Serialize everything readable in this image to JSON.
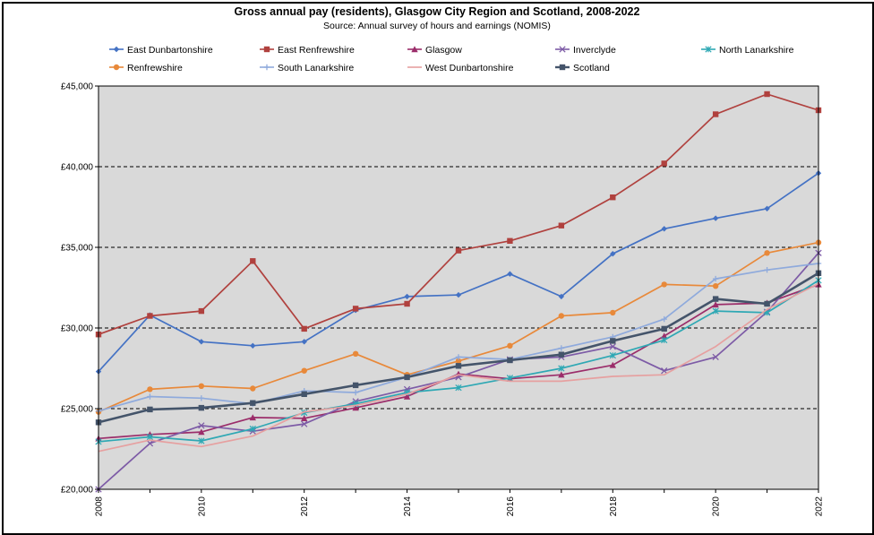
{
  "chart_data": {
    "type": "line",
    "title": "Gross annual pay (residents), Glasgow City Region and Scotland, 2008-2022",
    "subtitle": "Source: Annual survey of hours and earnings (NOMIS)",
    "xlabel": "",
    "ylabel": "",
    "x": [
      2008,
      2009,
      2010,
      2011,
      2012,
      2013,
      2014,
      2015,
      2016,
      2017,
      2018,
      2019,
      2020,
      2021,
      2022
    ],
    "xticks": [
      "2008",
      "2010",
      "2012",
      "2014",
      "2016",
      "2018",
      "2020",
      "2022"
    ],
    "xlim": [
      2008,
      2022
    ],
    "ylim": [
      20000,
      45000
    ],
    "yticks": [
      {
        "value": 20000,
        "label": "£20,000"
      },
      {
        "value": 25000,
        "label": "£25,000"
      },
      {
        "value": 30000,
        "label": "£30,000"
      },
      {
        "value": 35000,
        "label": "£35,000"
      },
      {
        "value": 40000,
        "label": "£40,000"
      },
      {
        "value": 45000,
        "label": "£45,000"
      }
    ],
    "grid": "horizontal dashed",
    "legend_position": "top",
    "plot_background": "#d9d9d9",
    "series": [
      {
        "name": "East Dunbartonshire",
        "color": "#4472c4",
        "marker": "diamond",
        "values": [
          27300,
          30800,
          29150,
          28900,
          29150,
          31100,
          31950,
          32050,
          33350,
          31950,
          34600,
          36150,
          36800,
          37400,
          39600
        ]
      },
      {
        "name": "East Renfrewshire",
        "color": "#b0413e",
        "marker": "square",
        "values": [
          29600,
          30750,
          31050,
          34150,
          29950,
          31200,
          31500,
          34800,
          35400,
          36350,
          38100,
          40200,
          43250,
          44500,
          43500
        ]
      },
      {
        "name": "Glasgow",
        "color": "#9b2d6a",
        "marker": "triangle",
        "values": [
          23150,
          23400,
          23550,
          24450,
          24400,
          25050,
          25750,
          27150,
          26850,
          27100,
          27700,
          29500,
          31450,
          31550,
          32700
        ]
      },
      {
        "name": "Inverclyde",
        "color": "#7d5ba6",
        "marker": "x",
        "values": [
          19750,
          22850,
          23950,
          23600,
          24050,
          25450,
          26200,
          26950,
          28050,
          28200,
          28850,
          27350,
          28200,
          31000,
          34650
        ]
      },
      {
        "name": "North Lanarkshire",
        "color": "#2ea8b4",
        "marker": "star",
        "values": [
          22950,
          23250,
          23000,
          23750,
          24750,
          25300,
          26000,
          26300,
          26900,
          27500,
          28300,
          29250,
          31050,
          30950,
          32950
        ]
      },
      {
        "name": "Renfrewshire",
        "color": "#e8893a",
        "marker": "circle",
        "values": [
          24800,
          26200,
          26400,
          26250,
          27350,
          28400,
          27100,
          27950,
          28900,
          30750,
          30950,
          32700,
          32600,
          34650,
          35300
        ]
      },
      {
        "name": "South Lanarkshire",
        "color": "#8faadc",
        "marker": "plus",
        "values": [
          24850,
          25750,
          25650,
          25300,
          26100,
          26000,
          26950,
          28200,
          28050,
          28750,
          29450,
          30550,
          33050,
          33600,
          34000
        ]
      },
      {
        "name": "West Dunbartonshire",
        "color": "#e6a0a0",
        "marker": "none",
        "values": [
          22350,
          23050,
          22650,
          23300,
          24800,
          25200,
          25900,
          27100,
          26700,
          26700,
          27000,
          27100,
          28850,
          31150,
          32750
        ]
      },
      {
        "name": "Scotland",
        "color": "#44546a",
        "marker": "square",
        "values": [
          24150,
          24950,
          25050,
          25350,
          25900,
          26450,
          26950,
          27650,
          28000,
          28350,
          29200,
          29950,
          31800,
          31500,
          33400
        ]
      }
    ]
  }
}
